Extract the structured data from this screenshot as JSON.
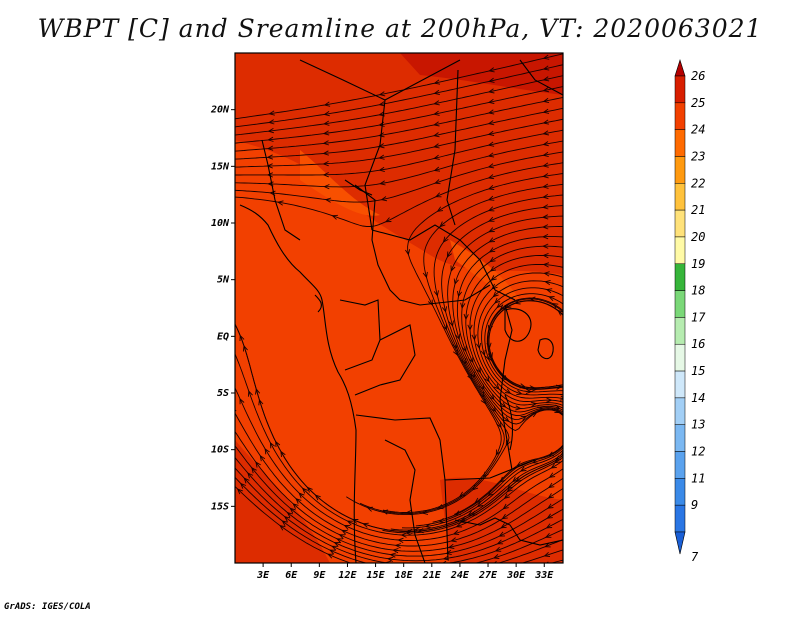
{
  "title": "WBPT [C] and Sreamline at 200hPa, VT: 2020063021",
  "footer": "GrADS: IGES/COLA",
  "map": {
    "lat_labels": [
      "20N",
      "15N",
      "10N",
      "5N",
      "EQ",
      "5S",
      "10S",
      "15S"
    ],
    "lat_values": [
      20,
      15,
      10,
      5,
      0,
      -5,
      -10,
      -15
    ],
    "lon_labels": [
      "3E",
      "6E",
      "9E",
      "12E",
      "15E",
      "18E",
      "21E",
      "24E",
      "27E",
      "30E",
      "33E"
    ],
    "lon_values": [
      3,
      6,
      9,
      12,
      15,
      18,
      21,
      24,
      27,
      30,
      33
    ],
    "lon_range": [
      0,
      35
    ],
    "lat_range": [
      -20,
      25
    ]
  },
  "colorbar": {
    "labels": [
      "7",
      "9",
      "11",
      "12",
      "13",
      "14",
      "15",
      "16",
      "17",
      "18",
      "19",
      "20",
      "21",
      "22",
      "23",
      "24",
      "25",
      "26"
    ],
    "colors": [
      "#1a5fd6",
      "#2a76e4",
      "#3a8ae8",
      "#5aa2ee",
      "#7bb8f2",
      "#a2cff6",
      "#cfe8fa",
      "#e6f8e6",
      "#b6ecb0",
      "#7ad878",
      "#36b53a",
      "#fffaa6",
      "#ffe27a",
      "#ffc23c",
      "#ff9a10",
      "#ff6a00",
      "#f24000",
      "#d81e00",
      "#b40000"
    ]
  }
}
